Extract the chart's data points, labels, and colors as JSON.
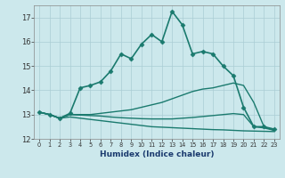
{
  "xlabel": "Humidex (Indice chaleur)",
  "ylabel": "",
  "background_color": "#cce8ec",
  "grid_color": "#aacdd4",
  "line_color": "#1a7a6e",
  "xlim": [
    -0.5,
    23.5
  ],
  "ylim": [
    12,
    17.5
  ],
  "yticks": [
    12,
    13,
    14,
    15,
    16,
    17
  ],
  "xticks": [
    0,
    1,
    2,
    3,
    4,
    5,
    6,
    7,
    8,
    9,
    10,
    11,
    12,
    13,
    14,
    15,
    16,
    17,
    18,
    19,
    20,
    21,
    22,
    23
  ],
  "series": [
    {
      "x": [
        0,
        1,
        2,
        3,
        4,
        5,
        6,
        7,
        8,
        9,
        10,
        11,
        12,
        13,
        14,
        15,
        16,
        17,
        18,
        19,
        20,
        21,
        22,
        23
      ],
      "y": [
        13.1,
        13.0,
        12.85,
        13.05,
        14.1,
        14.2,
        14.35,
        14.8,
        15.5,
        15.3,
        15.9,
        16.3,
        16.0,
        17.25,
        16.7,
        15.5,
        15.6,
        15.5,
        15.0,
        14.6,
        13.3,
        12.5,
        12.5,
        12.4
      ],
      "marker": "D",
      "markersize": 2.5,
      "linewidth": 1.2
    },
    {
      "x": [
        0,
        1,
        2,
        3,
        4,
        5,
        6,
        7,
        8,
        9,
        10,
        11,
        12,
        13,
        14,
        15,
        16,
        17,
        18,
        19,
        20,
        21,
        22,
        23
      ],
      "y": [
        13.1,
        13.0,
        12.85,
        13.0,
        13.0,
        13.0,
        13.05,
        13.1,
        13.15,
        13.2,
        13.3,
        13.4,
        13.5,
        13.65,
        13.8,
        13.95,
        14.05,
        14.1,
        14.2,
        14.3,
        14.2,
        13.5,
        12.5,
        12.35
      ],
      "marker": null,
      "linewidth": 1.0
    },
    {
      "x": [
        0,
        1,
        2,
        3,
        4,
        5,
        6,
        7,
        8,
        9,
        10,
        11,
        12,
        13,
        14,
        15,
        16,
        17,
        18,
        19,
        20,
        21,
        22,
        23
      ],
      "y": [
        13.1,
        13.0,
        12.85,
        13.0,
        12.98,
        12.96,
        12.94,
        12.9,
        12.87,
        12.85,
        12.83,
        12.82,
        12.82,
        12.82,
        12.85,
        12.88,
        12.92,
        12.96,
        13.0,
        13.04,
        13.0,
        12.5,
        12.45,
        12.35
      ],
      "marker": null,
      "linewidth": 1.0
    },
    {
      "x": [
        0,
        1,
        2,
        3,
        4,
        5,
        6,
        7,
        8,
        9,
        10,
        11,
        12,
        13,
        14,
        15,
        16,
        17,
        18,
        19,
        20,
        21,
        22,
        23
      ],
      "y": [
        13.1,
        13.0,
        12.85,
        12.9,
        12.85,
        12.8,
        12.75,
        12.7,
        12.65,
        12.6,
        12.55,
        12.5,
        12.48,
        12.46,
        12.44,
        12.42,
        12.4,
        12.38,
        12.37,
        12.35,
        12.33,
        12.32,
        12.31,
        12.3
      ],
      "marker": null,
      "linewidth": 1.0
    }
  ]
}
